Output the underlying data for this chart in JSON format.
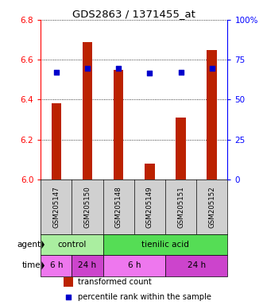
{
  "title": "GDS2863 / 1371455_at",
  "samples": [
    "GSM205147",
    "GSM205150",
    "GSM205148",
    "GSM205149",
    "GSM205151",
    "GSM205152"
  ],
  "bar_values": [
    6.38,
    6.69,
    6.55,
    6.08,
    6.31,
    6.65
  ],
  "bar_bottom": 6.0,
  "percentile_values": [
    6.535,
    6.558,
    6.558,
    6.532,
    6.535,
    6.558
  ],
  "ylim": [
    6.0,
    6.8
  ],
  "y_ticks_left": [
    6.0,
    6.2,
    6.4,
    6.6,
    6.8
  ],
  "y_ticks_right_labels": [
    "0",
    "25",
    "50",
    "75",
    "100%"
  ],
  "bar_color": "#bb2200",
  "dot_color": "#0000cc",
  "plot_bg": "#ffffff",
  "agent_groups": [
    {
      "label": "control",
      "start": 0,
      "end": 2,
      "color": "#aaeea0"
    },
    {
      "label": "tienilic acid",
      "start": 2,
      "end": 6,
      "color": "#55dd55"
    }
  ],
  "time_groups": [
    {
      "label": "6 h",
      "start": 0,
      "end": 1,
      "color": "#ee77ee"
    },
    {
      "label": "24 h",
      "start": 1,
      "end": 2,
      "color": "#cc44cc"
    },
    {
      "label": "6 h",
      "start": 2,
      "end": 4,
      "color": "#ee77ee"
    },
    {
      "label": "24 h",
      "start": 4,
      "end": 6,
      "color": "#cc44cc"
    }
  ],
  "sample_bg": "#d0d0d0",
  "legend_bar_color": "#bb2200",
  "legend_dot_color": "#0000cc"
}
